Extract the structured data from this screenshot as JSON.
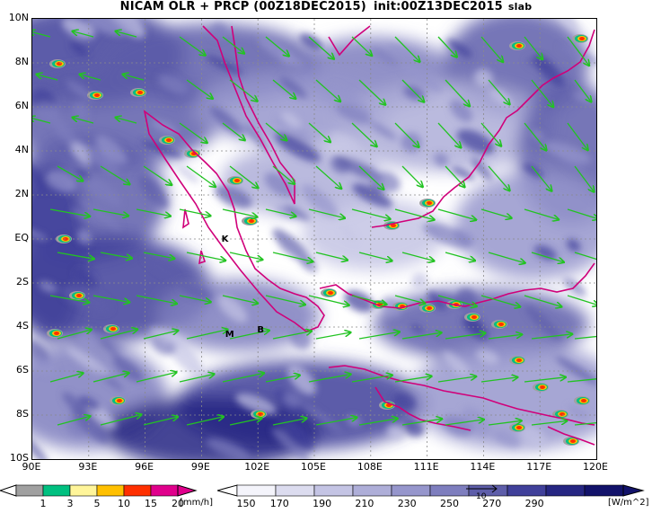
{
  "title": {
    "main": "NICAM OLR + PRCP (00Z18DEC2015)",
    "init": "init:00Z13DEC2015",
    "tag": "slab"
  },
  "axes": {
    "lat_labels": [
      "10N",
      "8N",
      "6N",
      "4N",
      "2N",
      "EQ",
      "2S",
      "4S",
      "6S",
      "8S",
      "10S"
    ],
    "lon_labels": [
      "90E",
      "93E",
      "96E",
      "99E",
      "102E",
      "105E",
      "108E",
      "111E",
      "114E",
      "117E",
      "120E"
    ]
  },
  "places": [
    {
      "label": "K",
      "lon": 100.3,
      "lat": -0.1
    },
    {
      "label": "M",
      "lon": 100.5,
      "lat": -4.4
    },
    {
      "label": "B",
      "lon": 102.2,
      "lat": -4.2
    }
  ],
  "legend_precip": {
    "unit": "[mm/h]",
    "labels": [
      "1",
      "3",
      "5",
      "10",
      "15",
      "20"
    ],
    "colors": [
      "#a0a0a0",
      "#00c080",
      "#fff59a",
      "#ffc000",
      "#ff3000",
      "#e0008c"
    ]
  },
  "legend_olr": {
    "unit": "[W/m^2]",
    "labels": [
      "150",
      "170",
      "190",
      "210",
      "230",
      "250",
      "270",
      "290"
    ],
    "colors": [
      "#f4f4fb",
      "#dcdcef",
      "#c4c4e4",
      "#aeaed8",
      "#9696cc",
      "#7e7ebe",
      "#5e5eaa",
      "#40409a",
      "#262682",
      "#12126a"
    ]
  },
  "vector_reference": {
    "label": "10"
  },
  "colors": {
    "wind": "#22c322",
    "coast": "#d0007a",
    "grid": "#8a8a8a"
  }
}
